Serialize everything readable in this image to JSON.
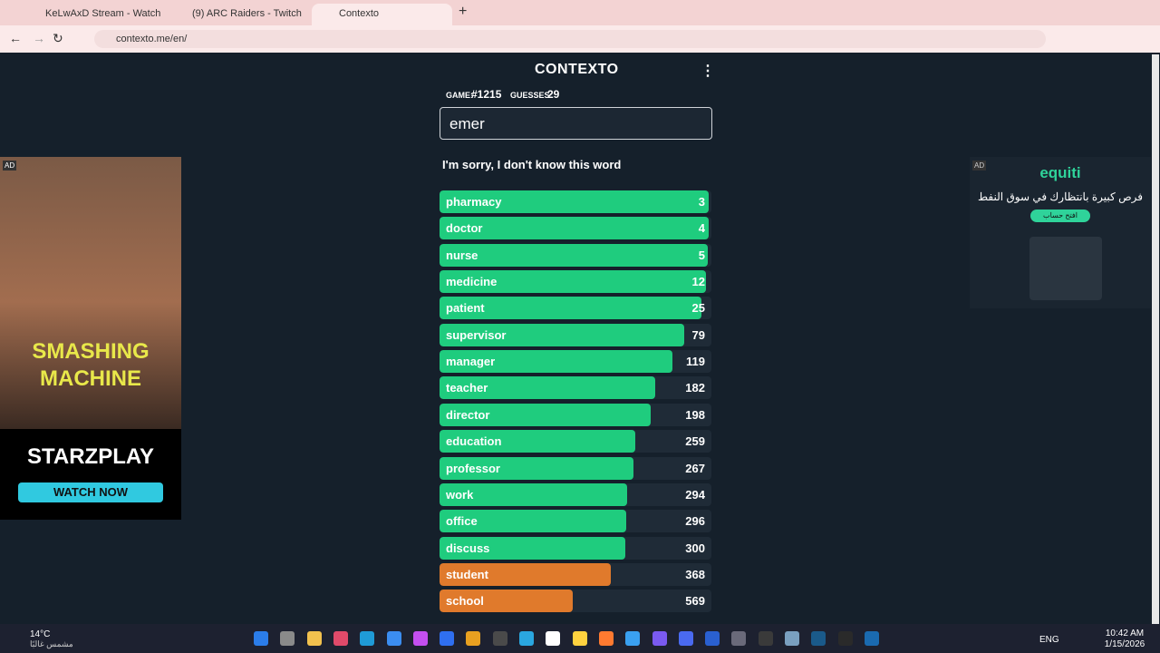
{
  "browser": {
    "tabs": [
      {
        "title": "KeLwAxD Stream - Watch Live o"
      },
      {
        "title": "(9) ARC Raiders - Twitch"
      },
      {
        "title": "Contexto"
      }
    ],
    "url": "contexto.me/en/"
  },
  "game": {
    "title": "CONTEXTO",
    "game_label": "GAME:",
    "game_number": "#1215",
    "guesses_label": "GUESSES:",
    "guesses_count": 29,
    "input_value": "emer",
    "message": "I'm sorry, I don't know this word",
    "guesses": [
      {
        "word": "pharmacy",
        "rank": 3
      },
      {
        "word": "doctor",
        "rank": 4
      },
      {
        "word": "nurse",
        "rank": 5
      },
      {
        "word": "medicine",
        "rank": 12
      },
      {
        "word": "patient",
        "rank": 25
      },
      {
        "word": "supervisor",
        "rank": 79
      },
      {
        "word": "manager",
        "rank": 119
      },
      {
        "word": "teacher",
        "rank": 182
      },
      {
        "word": "director",
        "rank": 198
      },
      {
        "word": "education",
        "rank": 259
      },
      {
        "word": "professor",
        "rank": 267
      },
      {
        "word": "work",
        "rank": 294
      },
      {
        "word": "office",
        "rank": 296
      },
      {
        "word": "discuss",
        "rank": 300
      },
      {
        "word": "student",
        "rank": 368
      },
      {
        "word": "school",
        "rank": 569
      }
    ]
  },
  "ads": {
    "left": {
      "badge": "AD",
      "headline": "SMASHING MACHINE",
      "brand": "STARZPLAY",
      "button": "WATCH NOW"
    },
    "right": {
      "badge": "AD",
      "brand": "equiti",
      "headline": "فرص كبيرة بانتظارك في سوق النفط",
      "button": "افتح حساب"
    }
  },
  "taskbar": {
    "temperature": "14°C",
    "weather": "مشمس غالبًا",
    "language": "ENG",
    "time": "10:42 AM",
    "date": "1/15/2026"
  }
}
